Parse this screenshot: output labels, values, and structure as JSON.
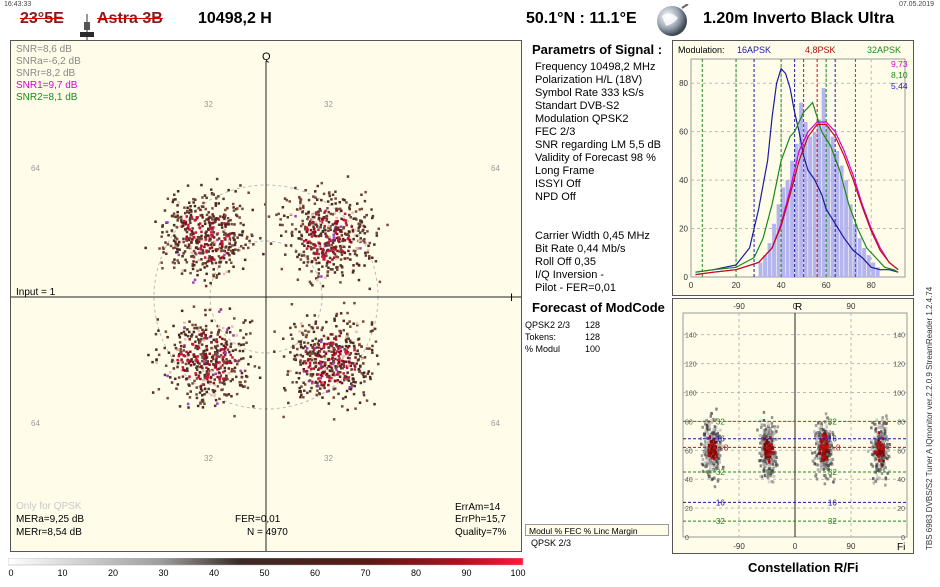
{
  "header": {
    "time": "16:43:33",
    "date": "07.05.2019",
    "satellite": "23°5E",
    "satellite_name": "Astra 3B",
    "frequency": "10498,2  H",
    "location": "50.1°N : 11.1°E",
    "dish": "1.20m  Inverto Black Ultra"
  },
  "constellation": {
    "axis_q": "Q",
    "axis_i": "I",
    "snr_lines": [
      {
        "text": "SNR=8,6 dB",
        "color": "#888888"
      },
      {
        "text": "SNRa=-6,2 dB",
        "color": "#888888"
      },
      {
        "text": "SNRr=8,2 dB",
        "color": "#888888"
      },
      {
        "text": "SNR1=9,7 dB",
        "color": "#d400d4"
      },
      {
        "text": "SNR2=8,1 dB",
        "color": "#1a8a1a"
      }
    ],
    "tick_labels": {
      "top": "32",
      "side": "64",
      "mid": "32"
    },
    "input": "Input = 1",
    "only_for": "Only for QPSK",
    "mera": "MERa=9,25 dB",
    "merr": "MERr=8,54 dB",
    "fer": "FER=0,01",
    "n": "N = 4970",
    "erram": "ErrAm=14",
    "errph": "ErrPh=15,7",
    "quality": "Quality=7%"
  },
  "params": {
    "title": "Parametrs of Signal :",
    "lines": [
      "Frequency  10498,2 MHz",
      "Polarization  H/L (18V)",
      "Symbol Rate  333 kS/s",
      "Standart  DVB-S2",
      "Modulation  QPSK2",
      "FEC  2/3",
      "SNR regarding LM  5,5 dB",
      "Validity of Forecast  98 %",
      "Long  Frame",
      "ISSYI  Off",
      "NPD  Off"
    ],
    "lines2": [
      "Carrier Width  0,45 MHz",
      "Bit Rate  0,44 Mb/s",
      "Roll Off  0,35",
      "I/Q Inversion   -",
      "Pilot   -       FER=0,01"
    ],
    "forecast_title": "Forecast of ModCode",
    "forecast_rows": [
      {
        "label": "QPSK2 2/3",
        "value": "128"
      },
      {
        "label": "Tokens:",
        "value": "128"
      },
      {
        "label": "% Modul",
        "value": "100"
      }
    ],
    "table_header": "Modul    %   FEC %   Linc Margin",
    "table_row": "QPSK 2/3"
  },
  "chart_data": [
    {
      "type": "line",
      "title": "Modulation:",
      "legend": [
        {
          "name": "16APSK",
          "color": "#1a1aa0",
          "value": "5,44"
        },
        {
          "name": "4,8PSK",
          "color": "#b01010",
          "value": "9,73"
        },
        {
          "name": "32APSK",
          "color": "#1a8a1a",
          "value": "8,10"
        }
      ],
      "legend_values": [
        {
          "text": "9,73",
          "color": "#d400d4"
        },
        {
          "text": "8,10",
          "color": "#1a8a1a"
        },
        {
          "text": "5,44",
          "color": "#1a1aa0"
        }
      ],
      "xlim": [
        0,
        95
      ],
      "ylim": [
        0,
        90
      ],
      "xticks": [
        "0",
        "20",
        "40",
        "60",
        "80"
      ],
      "yticks": [
        "0",
        "20",
        "40",
        "60",
        "80"
      ],
      "series": [
        {
          "name": "navy",
          "color": "#1a1aa0",
          "x": [
            2,
            10,
            20,
            26,
            30,
            34,
            36,
            38,
            40,
            42,
            44,
            46,
            48,
            50,
            52,
            55,
            58,
            60,
            64,
            68,
            72,
            76,
            80,
            84,
            88,
            92
          ],
          "y": [
            2,
            3,
            5,
            12,
            28,
            48,
            66,
            80,
            86,
            84,
            78,
            68,
            60,
            50,
            44,
            40,
            34,
            28,
            22,
            16,
            11,
            8,
            4,
            3,
            3,
            2
          ]
        },
        {
          "name": "green",
          "color": "#1a8a1a",
          "x": [
            2,
            10,
            20,
            28,
            32,
            36,
            40,
            44,
            46,
            50,
            54,
            58,
            62,
            66,
            70,
            74,
            78,
            82,
            86,
            90,
            92
          ],
          "y": [
            2,
            3,
            4,
            8,
            16,
            30,
            48,
            58,
            60,
            68,
            72,
            60,
            54,
            44,
            30,
            20,
            12,
            8,
            4,
            3,
            2
          ]
        },
        {
          "name": "magenta",
          "color": "#d400d4",
          "x": [
            2,
            10,
            20,
            30,
            36,
            40,
            44,
            48,
            52,
            56,
            60,
            64,
            68,
            72,
            76,
            80,
            84,
            88,
            92
          ],
          "y": [
            1,
            2,
            3,
            6,
            12,
            22,
            36,
            52,
            60,
            64,
            64,
            60,
            52,
            42,
            30,
            20,
            12,
            6,
            3
          ]
        },
        {
          "name": "red",
          "color": "#c01010",
          "x": [
            2,
            10,
            20,
            30,
            36,
            40,
            44,
            48,
            52,
            56,
            60,
            64,
            68,
            72,
            76,
            80,
            84,
            88,
            92
          ],
          "y": [
            1,
            2,
            3,
            6,
            12,
            21,
            34,
            48,
            58,
            63,
            63,
            58,
            50,
            40,
            29,
            19,
            11,
            6,
            3
          ]
        }
      ],
      "histogram": {
        "color": "#b4b4ee",
        "x": [
          30,
          32,
          34,
          36,
          38,
          40,
          42,
          44,
          46,
          48,
          50,
          52,
          54,
          56,
          58,
          60,
          62,
          64,
          66,
          68,
          70,
          72,
          74,
          76,
          78,
          80,
          82
        ],
        "y": [
          6,
          9,
          14,
          22,
          30,
          37,
          40,
          48,
          55,
          72,
          64,
          58,
          60,
          65,
          78,
          62,
          58,
          52,
          46,
          40,
          30,
          22,
          16,
          12,
          9,
          6,
          4
        ]
      },
      "vlines": [
        {
          "x": 5,
          "color": "#1a8a1a"
        },
        {
          "x": 20,
          "color": "#1a8a1a"
        },
        {
          "x": 28,
          "color": "#1a1aa0"
        },
        {
          "x": 40,
          "color": "#1a8a1a"
        },
        {
          "x": 46,
          "color": "#1a1aa0"
        },
        {
          "x": 50,
          "color": "#c01010"
        },
        {
          "x": 56,
          "color": "#c01010"
        },
        {
          "x": 60,
          "color": "#1a8a1a"
        },
        {
          "x": 64,
          "color": "#1a1aa0"
        },
        {
          "x": 73,
          "color": "#1a8a1a"
        }
      ]
    },
    {
      "type": "heatmap",
      "title": "Constellation  R/Fi",
      "axis_r": "R",
      "axis_fi": "Fi",
      "xticks": [
        "-90",
        "0",
        "90"
      ],
      "yticks": [
        "140",
        "120",
        "100",
        "80",
        "60",
        "40",
        "20",
        "0"
      ],
      "ylim": [
        0,
        155
      ],
      "xlim": [
        -180,
        180
      ],
      "rings": [
        {
          "label": "32",
          "r": 80,
          "color": "#1a8a1a"
        },
        {
          "label": "16",
          "r": 68,
          "color": "#1a1aa0"
        },
        {
          "label": "4 · 8",
          "r": 62,
          "color": "#c01010"
        },
        {
          "label": "32",
          "r": 45,
          "color": "#1a8a1a"
        },
        {
          "label": "16",
          "r": 24,
          "color": "#1a1aa0"
        },
        {
          "label": "32",
          "r": 11,
          "color": "#1a8a1a"
        }
      ],
      "clusters_fi": [
        -135,
        -45,
        45,
        135
      ],
      "cluster_r": 62
    }
  ],
  "scale": {
    "labels": [
      "0",
      "10",
      "20",
      "30",
      "40",
      "50",
      "60",
      "70",
      "80",
      "90",
      "100"
    ]
  },
  "side_text": "TBS 6983 DVBS/S2 Tuner A    IQmonitor  ver.2.2.0.9    StreamReader 1.2.4.74"
}
